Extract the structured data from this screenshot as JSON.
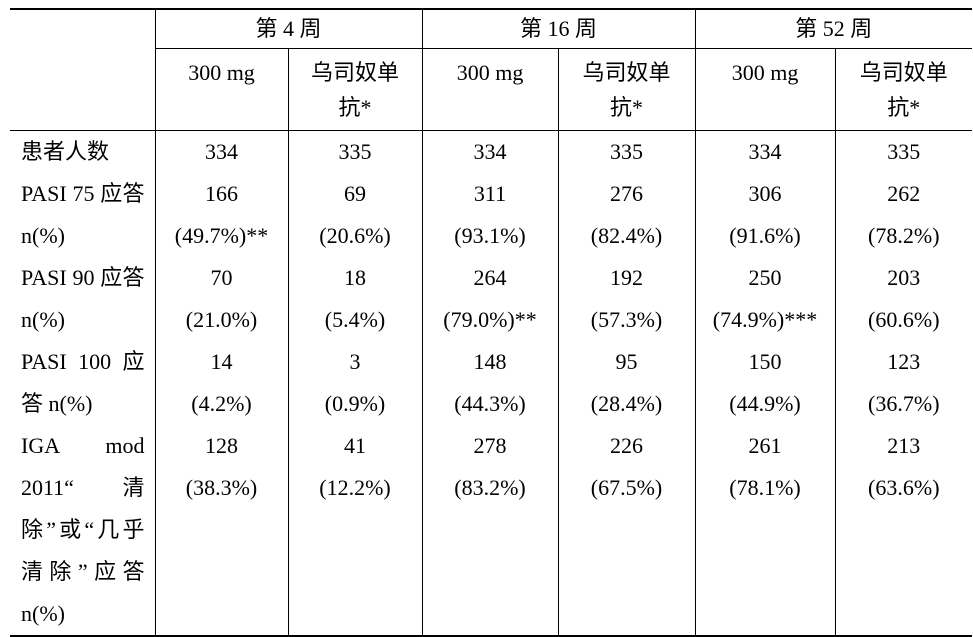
{
  "table": {
    "groups": [
      "第 4 周",
      "第 16 周",
      "第 52 周"
    ],
    "subheaders": [
      "300 mg",
      "乌司奴单抗*",
      "300 mg",
      "乌司奴单抗*",
      "300 mg",
      "乌司奴单抗*"
    ],
    "rows": [
      {
        "label": "患者人数",
        "cells": [
          [
            "334"
          ],
          [
            "335"
          ],
          [
            "334"
          ],
          [
            "335"
          ],
          [
            "334"
          ],
          [
            "335"
          ]
        ]
      },
      {
        "label": "PASI 75 应答 n(%)",
        "cells": [
          [
            "166",
            "(49.7%)**"
          ],
          [
            "69",
            "(20.6%)"
          ],
          [
            "311",
            "(93.1%)"
          ],
          [
            "276",
            "(82.4%)"
          ],
          [
            "306",
            "(91.6%)"
          ],
          [
            "262",
            "(78.2%)"
          ]
        ]
      },
      {
        "label": "PASI 90 应答 n(%)",
        "cells": [
          [
            "70",
            "(21.0%)"
          ],
          [
            "18",
            "(5.4%)"
          ],
          [
            "264",
            "(79.0%)**"
          ],
          [
            "192",
            "(57.3%)"
          ],
          [
            "250",
            "(74.9%)***"
          ],
          [
            "203",
            "(60.6%)"
          ]
        ]
      },
      {
        "label": "PASI 100 应答 n(%)",
        "cells": [
          [
            "14",
            "(4.2%)"
          ],
          [
            "3",
            "(0.9%)"
          ],
          [
            "148",
            "(44.3%)"
          ],
          [
            "95",
            "(28.4%)"
          ],
          [
            "150",
            "(44.9%)"
          ],
          [
            "123",
            "(36.7%)"
          ]
        ]
      },
      {
        "label": "IGA mod 2011“清除”或“几乎清除”应答 n(%)",
        "cells": [
          [
            "128",
            "(38.3%)"
          ],
          [
            "41",
            "(12.2%)"
          ],
          [
            "278",
            "(83.2%)"
          ],
          [
            "226",
            "(67.5%)"
          ],
          [
            "261",
            "(78.1%)"
          ],
          [
            "213",
            "(63.6%)"
          ]
        ]
      }
    ]
  }
}
